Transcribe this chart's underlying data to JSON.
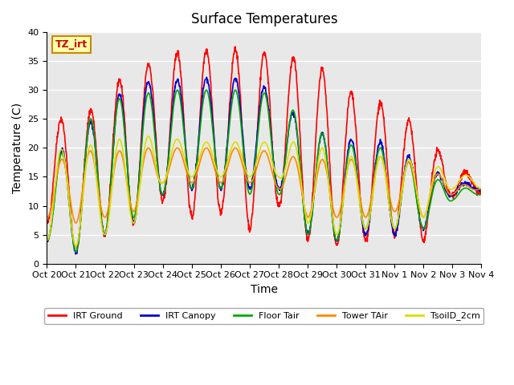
{
  "title": "Surface Temperatures",
  "ylabel": "Temperature (C)",
  "xlabel": "Time",
  "ylim": [
    0,
    40
  ],
  "bg_color": "#e8e8e8",
  "fig_color": "#ffffff",
  "tz_label": "TZ_irt",
  "legend_entries": [
    "IRT Ground",
    "IRT Canopy",
    "Floor Tair",
    "Tower TAir",
    "TsoilD_2cm"
  ],
  "line_colors": [
    "#ff0000",
    "#0000cc",
    "#00aa00",
    "#ff8800",
    "#dddd00"
  ],
  "xtick_labels": [
    "Oct 20",
    "Oct 21",
    "Oct 22",
    "Oct 23",
    "Oct 24",
    "Oct 25",
    "Oct 26",
    "Oct 27",
    "Oct 28",
    "Oct 29",
    "Oct 30",
    "Oct 31",
    "Nov 1",
    "Nov 2",
    "Nov 3",
    "Nov 4"
  ],
  "day_peaks_irt_ground": [
    27.5,
    22.5,
    30.5,
    33,
    36,
    37,
    37,
    37,
    36,
    35,
    32,
    27,
    28.5,
    21,
    18,
    13
  ],
  "day_peaks_irt_canopy": [
    17,
    22,
    27,
    31.5,
    31.5,
    32,
    32,
    32,
    29,
    23,
    22,
    21,
    21,
    16,
    15,
    12.5
  ],
  "day_peaks_floor": [
    16,
    22,
    28,
    29,
    30,
    30,
    30,
    30,
    29,
    24,
    21,
    20,
    20,
    15,
    14,
    12
  ],
  "day_peaks_tower": [
    16,
    20,
    19,
    20,
    20,
    20,
    20,
    20,
    19,
    18,
    18,
    18,
    19,
    16,
    15,
    12
  ],
  "day_peaks_tsoil": [
    19.5,
    20,
    21,
    22,
    22,
    21,
    21,
    21,
    21,
    21,
    19,
    18,
    19,
    17,
    16.5,
    14
  ],
  "night_mins_irt_ground": [
    7,
    2,
    5,
    7,
    11,
    8,
    9,
    6,
    10,
    4,
    3,
    4,
    5,
    4,
    12,
    12
  ],
  "night_mins_irt_canopy": [
    4,
    2,
    5,
    7,
    12,
    13,
    13,
    13,
    13,
    5,
    4,
    5,
    5,
    6,
    12,
    13
  ],
  "night_mins_floor": [
    4,
    2,
    5,
    8,
    12,
    13,
    13,
    12,
    12,
    5,
    4,
    6,
    6,
    6,
    11,
    12
  ],
  "night_mins_tower": [
    8,
    7,
    8,
    9,
    14,
    14,
    14,
    14,
    13,
    8,
    8,
    8,
    9,
    8,
    12,
    13
  ],
  "night_mins_tsoil": [
    4,
    3,
    5,
    7,
    14,
    15,
    15,
    15,
    15,
    7,
    5,
    6,
    6,
    8,
    13,
    13
  ]
}
